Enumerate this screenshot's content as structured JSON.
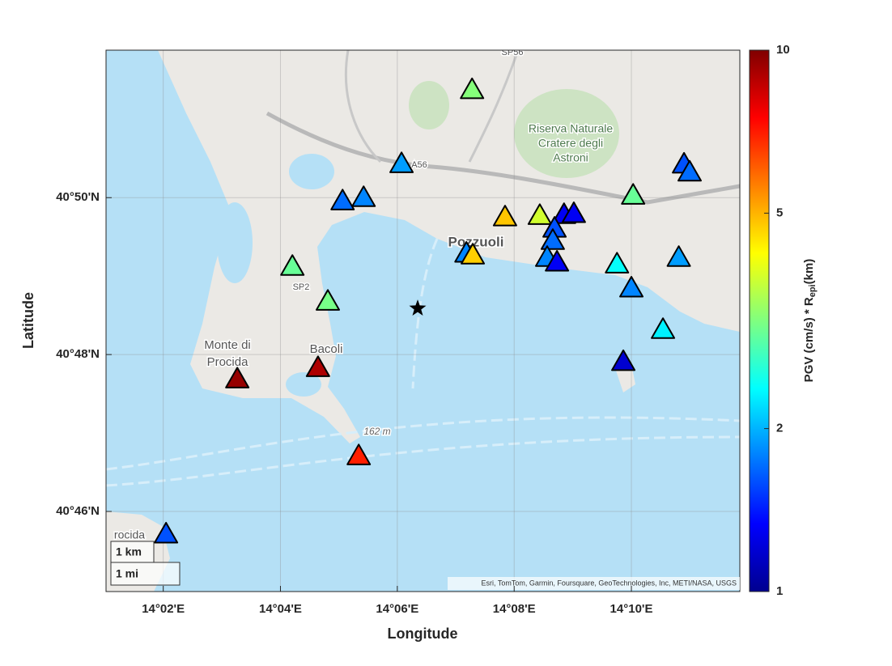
{
  "chart_data": {
    "type": "scatter",
    "xlabel": "Longitude",
    "ylabel": "Latitude",
    "xlim": [
      14.017,
      14.1976
    ],
    "ylim": [
      40.7497,
      40.8646
    ],
    "xticks": [
      {
        "value": 14.0333,
        "label": "14°02'E"
      },
      {
        "value": 14.0667,
        "label": "14°04'E"
      },
      {
        "value": 14.1,
        "label": "14°06'E"
      },
      {
        "value": 14.1333,
        "label": "14°08'E"
      },
      {
        "value": 14.1667,
        "label": "14°10'E"
      }
    ],
    "yticks": [
      {
        "value": 40.7667,
        "label": "40°46'N"
      },
      {
        "value": 40.8,
        "label": "40°48'N"
      },
      {
        "value": 40.8333,
        "label": "40°50'N"
      }
    ],
    "grid": true,
    "series": [
      {
        "x": [
          14.1213,
          14.1012,
          14.0844,
          14.0904,
          14.0701,
          14.0802,
          14.0544,
          14.0774,
          14.089,
          14.0341,
          14.1197,
          14.1215,
          14.1307,
          14.1406,
          14.1475,
          14.1503,
          14.1448,
          14.1443,
          14.1427,
          14.1455,
          14.1672,
          14.1817,
          14.1833,
          14.1626,
          14.1802,
          14.1667,
          14.1757,
          14.1644
        ],
        "y": [
          40.8562,
          40.8405,
          40.8326,
          40.8333,
          40.8187,
          40.8113,
          40.7948,
          40.7972,
          40.7785,
          40.7619,
          40.8215,
          40.8211,
          40.8292,
          40.8295,
          40.8297,
          40.8299,
          40.8268,
          40.8242,
          40.8206,
          40.8196,
          40.8338,
          40.8404,
          40.8387,
          40.8192,
          40.8206,
          40.8141,
          40.8053,
          40.7985
        ],
        "values": [
          3.2,
          1.9,
          1.7,
          1.8,
          3.0,
          3.1,
          9.5,
          9.0,
          7.0,
          1.6,
          1.8,
          4.7,
          4.8,
          3.8,
          1.3,
          1.3,
          1.6,
          1.7,
          1.8,
          1.3,
          3.0,
          1.6,
          1.7,
          2.4,
          1.9,
          1.8,
          2.3,
          1.2
        ]
      }
    ],
    "epicenter": {
      "x": 14.1058,
      "y": 40.8098
    },
    "colorbar": {
      "label": "PGV (cm/s) * R",
      "label_sub": "epi",
      "label_end": "(km)",
      "clim": [
        1,
        10
      ],
      "ticks": [
        1,
        2,
        5,
        10
      ],
      "scale": "log",
      "colormap": "jet"
    },
    "map_labels": [
      "Riserva Naturale",
      "Cratere degli",
      "Astroni",
      "Pozzuoli",
      "Monte di",
      "Procida",
      "Bacoli",
      "162 m",
      "A56",
      "SP2",
      "SP56",
      "rocida"
    ],
    "scale_bar": [
      "1 km",
      "1 mi"
    ],
    "attribution": "Esri, TomTom, Garmin, Foursquare, GeoTechnologies, Inc, METI/NASA, USGS"
  }
}
